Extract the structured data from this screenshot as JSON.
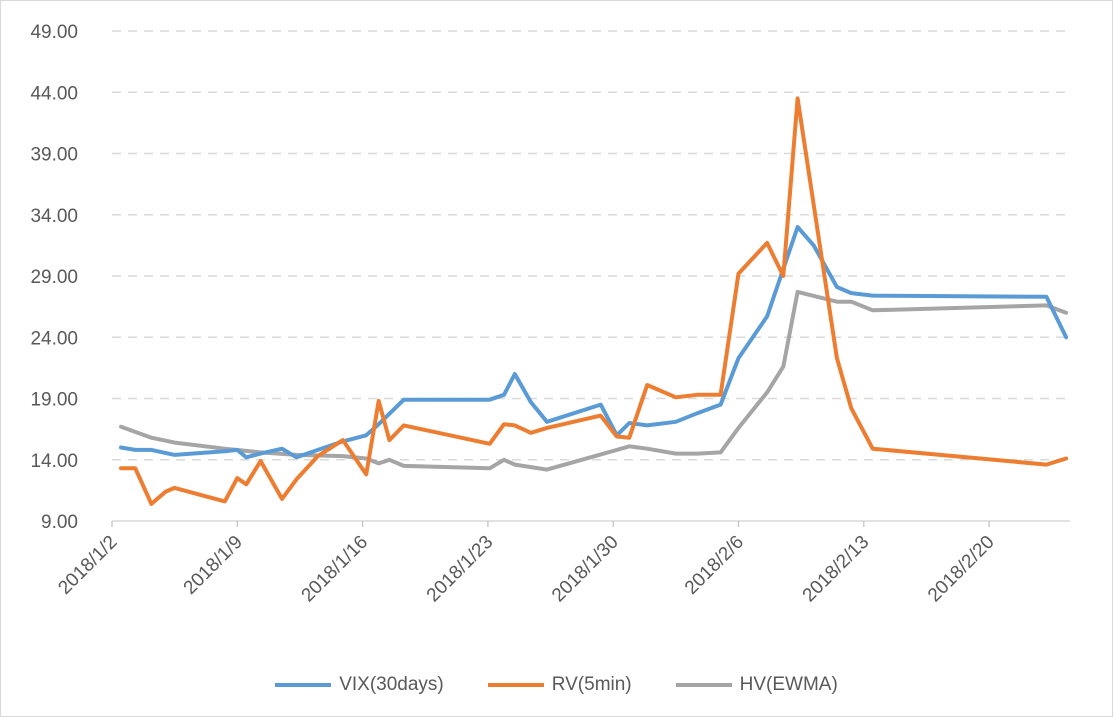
{
  "chart_data": {
    "type": "line",
    "title": "",
    "xlabel": "",
    "ylabel": "",
    "ylim": [
      9,
      49
    ],
    "yticks": [
      "9.00",
      "14.00",
      "19.00",
      "24.00",
      "29.00",
      "34.00",
      "39.00",
      "44.00",
      "49.00"
    ],
    "xticks": [
      {
        "label": "2018/1/2",
        "day": 0
      },
      {
        "label": "2018/1/9",
        "day": 7
      },
      {
        "label": "2018/1/16",
        "day": 14
      },
      {
        "label": "2018/1/23",
        "day": 21
      },
      {
        "label": "2018/1/30",
        "day": 28
      },
      {
        "label": "2018/2/6",
        "day": 35
      },
      {
        "label": "2018/2/13",
        "day": 42
      },
      {
        "label": "2018/2/20",
        "day": 49
      }
    ],
    "xlim": [
      0,
      53.5
    ],
    "x_unit": "days since 2018/1/2",
    "grid": true,
    "legend_position": "bottom",
    "series": [
      {
        "name": "VIX(30days)",
        "color": "#5b9bd5",
        "x": [
          0.5,
          1.3,
          2.2,
          3.5,
          6.3,
          7.0,
          7.5,
          8.3,
          9.5,
          10.3,
          11.5,
          12.9,
          14.2,
          14.9,
          16.3,
          21.1,
          21.9,
          22.5,
          23.4,
          24.3,
          27.3,
          28.2,
          28.9,
          29.9,
          31.5,
          32.7,
          34.0,
          35.0,
          36.6,
          38.3,
          39.2,
          40.5,
          41.3,
          42.5,
          52.2,
          53.3
        ],
        "values": [
          15.0,
          14.8,
          14.8,
          14.4,
          14.7,
          14.8,
          14.2,
          14.5,
          14.9,
          14.2,
          14.8,
          15.5,
          16.0,
          16.9,
          18.9,
          18.9,
          19.3,
          21.0,
          18.7,
          17.1,
          18.5,
          16.0,
          17.0,
          16.8,
          17.1,
          17.8,
          18.5,
          22.3,
          25.7,
          33.0,
          31.5,
          28.1,
          27.6,
          27.4,
          27.3,
          24.0
        ]
      },
      {
        "name": "RV(5min)",
        "color": "#ed7d31",
        "x": [
          0.5,
          1.3,
          2.2,
          3.0,
          3.5,
          6.3,
          7.0,
          7.5,
          8.3,
          9.5,
          10.3,
          11.5,
          12.9,
          14.2,
          14.9,
          15.5,
          16.3,
          21.1,
          21.9,
          22.5,
          23.4,
          24.3,
          27.3,
          28.2,
          28.9,
          29.9,
          31.5,
          32.7,
          34.0,
          35.0,
          36.6,
          37.5,
          38.3,
          40.5,
          41.3,
          42.5,
          52.2,
          53.3
        ],
        "values": [
          13.3,
          13.3,
          10.4,
          11.4,
          11.7,
          10.6,
          12.5,
          12.0,
          13.9,
          10.8,
          12.4,
          14.3,
          15.6,
          12.8,
          18.8,
          15.6,
          16.8,
          15.3,
          16.9,
          16.8,
          16.2,
          16.6,
          17.6,
          15.9,
          15.8,
          20.1,
          19.1,
          19.3,
          19.3,
          29.2,
          31.7,
          29.0,
          43.5,
          22.3,
          18.2,
          14.9,
          13.6,
          14.1
        ]
      },
      {
        "name": "HV(EWMA)",
        "color": "#a5a5a5",
        "x": [
          0.5,
          2.2,
          3.5,
          6.3,
          8.3,
          10.3,
          12.9,
          14.2,
          14.9,
          15.5,
          16.3,
          21.1,
          21.9,
          22.5,
          23.4,
          24.3,
          28.2,
          28.9,
          29.9,
          31.5,
          32.7,
          34.0,
          35.0,
          36.6,
          37.5,
          38.3,
          40.5,
          41.3,
          42.5,
          52.2,
          53.3
        ],
        "values": [
          16.7,
          15.8,
          15.4,
          14.9,
          14.6,
          14.4,
          14.3,
          14.1,
          13.7,
          14.0,
          13.5,
          13.3,
          14.0,
          13.6,
          13.4,
          13.2,
          14.8,
          15.1,
          14.9,
          14.5,
          14.5,
          14.6,
          16.6,
          19.5,
          21.6,
          27.7,
          26.9,
          26.9,
          26.2,
          26.6,
          26.0
        ]
      }
    ]
  }
}
